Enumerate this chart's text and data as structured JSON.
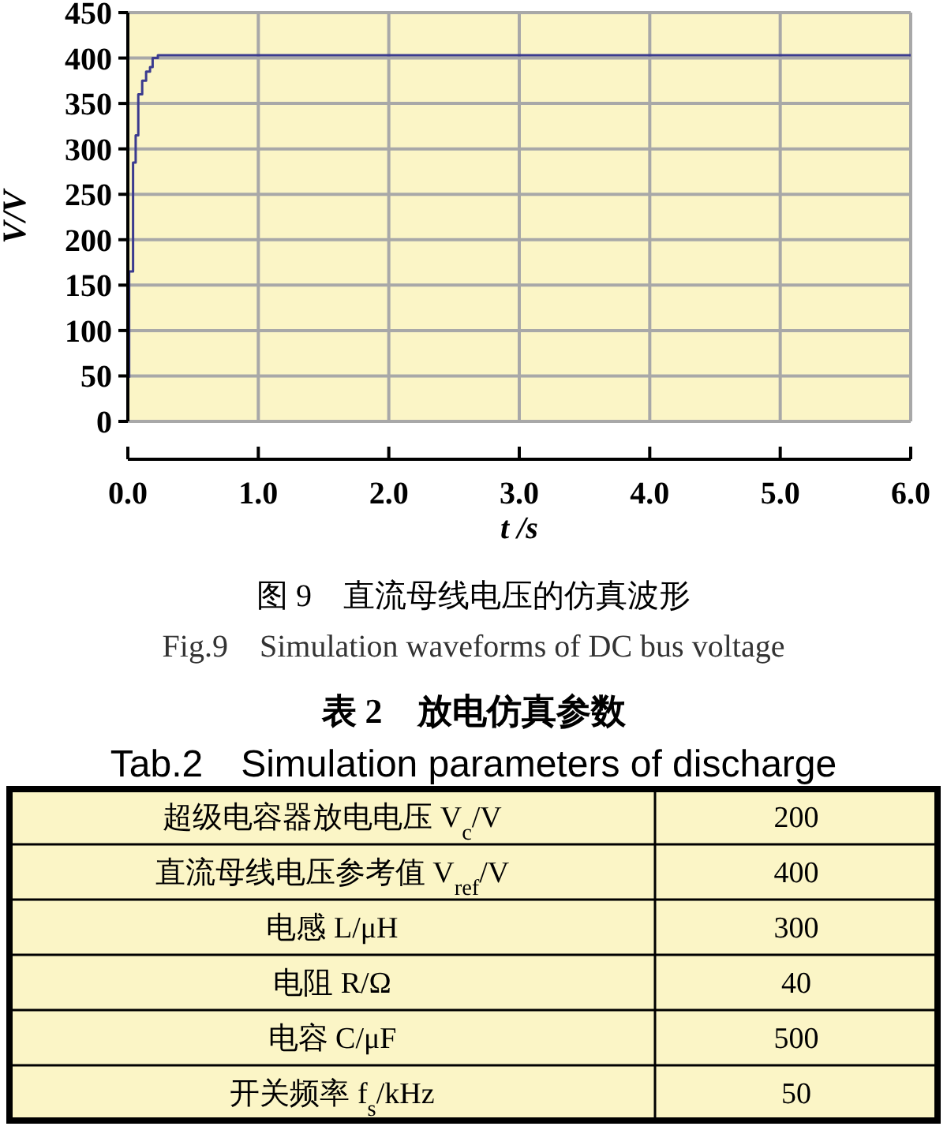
{
  "chart_data": [
    {
      "type": "step",
      "title": "图 9　直流母线电压的仿真波形",
      "subtitle": "Fig.9　Simulation waveforms of DC bus voltage",
      "xlabel": "t /s",
      "ylabel": "V/V",
      "x": [
        0.01,
        0.01,
        0.04,
        0.06,
        0.08,
        0.11,
        0.14,
        0.17,
        0.19,
        0.23,
        6.0
      ],
      "series": [
        {
          "color": "#3b3b8f",
          "values": [
            48,
            165,
            285,
            315,
            360,
            375,
            385,
            390,
            400,
            403,
            403
          ]
        }
      ],
      "xlim": [
        0,
        6
      ],
      "xticks": [
        {
          "value": 0,
          "label": "0.0"
        },
        {
          "value": 1,
          "label": "1.0"
        },
        {
          "value": 2,
          "label": "2.0"
        },
        {
          "value": 3,
          "label": "3.0"
        },
        {
          "value": 4,
          "label": "4.0"
        },
        {
          "value": 5,
          "label": "5.0"
        },
        {
          "value": 6,
          "label": "6.0"
        }
      ],
      "ylim": [
        0,
        450
      ],
      "yticks": [
        0,
        50,
        100,
        150,
        200,
        250,
        300,
        350,
        400,
        450
      ],
      "grid": true,
      "marker": "none",
      "line_style": "solid"
    },
    {
      "type": "other",
      "title": "表 2　放电仿真参数",
      "subtitle": "Tab.2　Simulation parameters of discharge",
      "categories": [
        "超级电容器放电电压 V$_{c}$/V",
        "直流母线电压参考值 V$_{ref}$/V",
        "电感 L/μH",
        "电阻 R/Ω",
        "电容 C/μF",
        "开关频率 f$_{s}$/kHz"
      ],
      "values": [
        200,
        400,
        300,
        40,
        500,
        50
      ],
      "data_labels": true
    }
  ]
}
